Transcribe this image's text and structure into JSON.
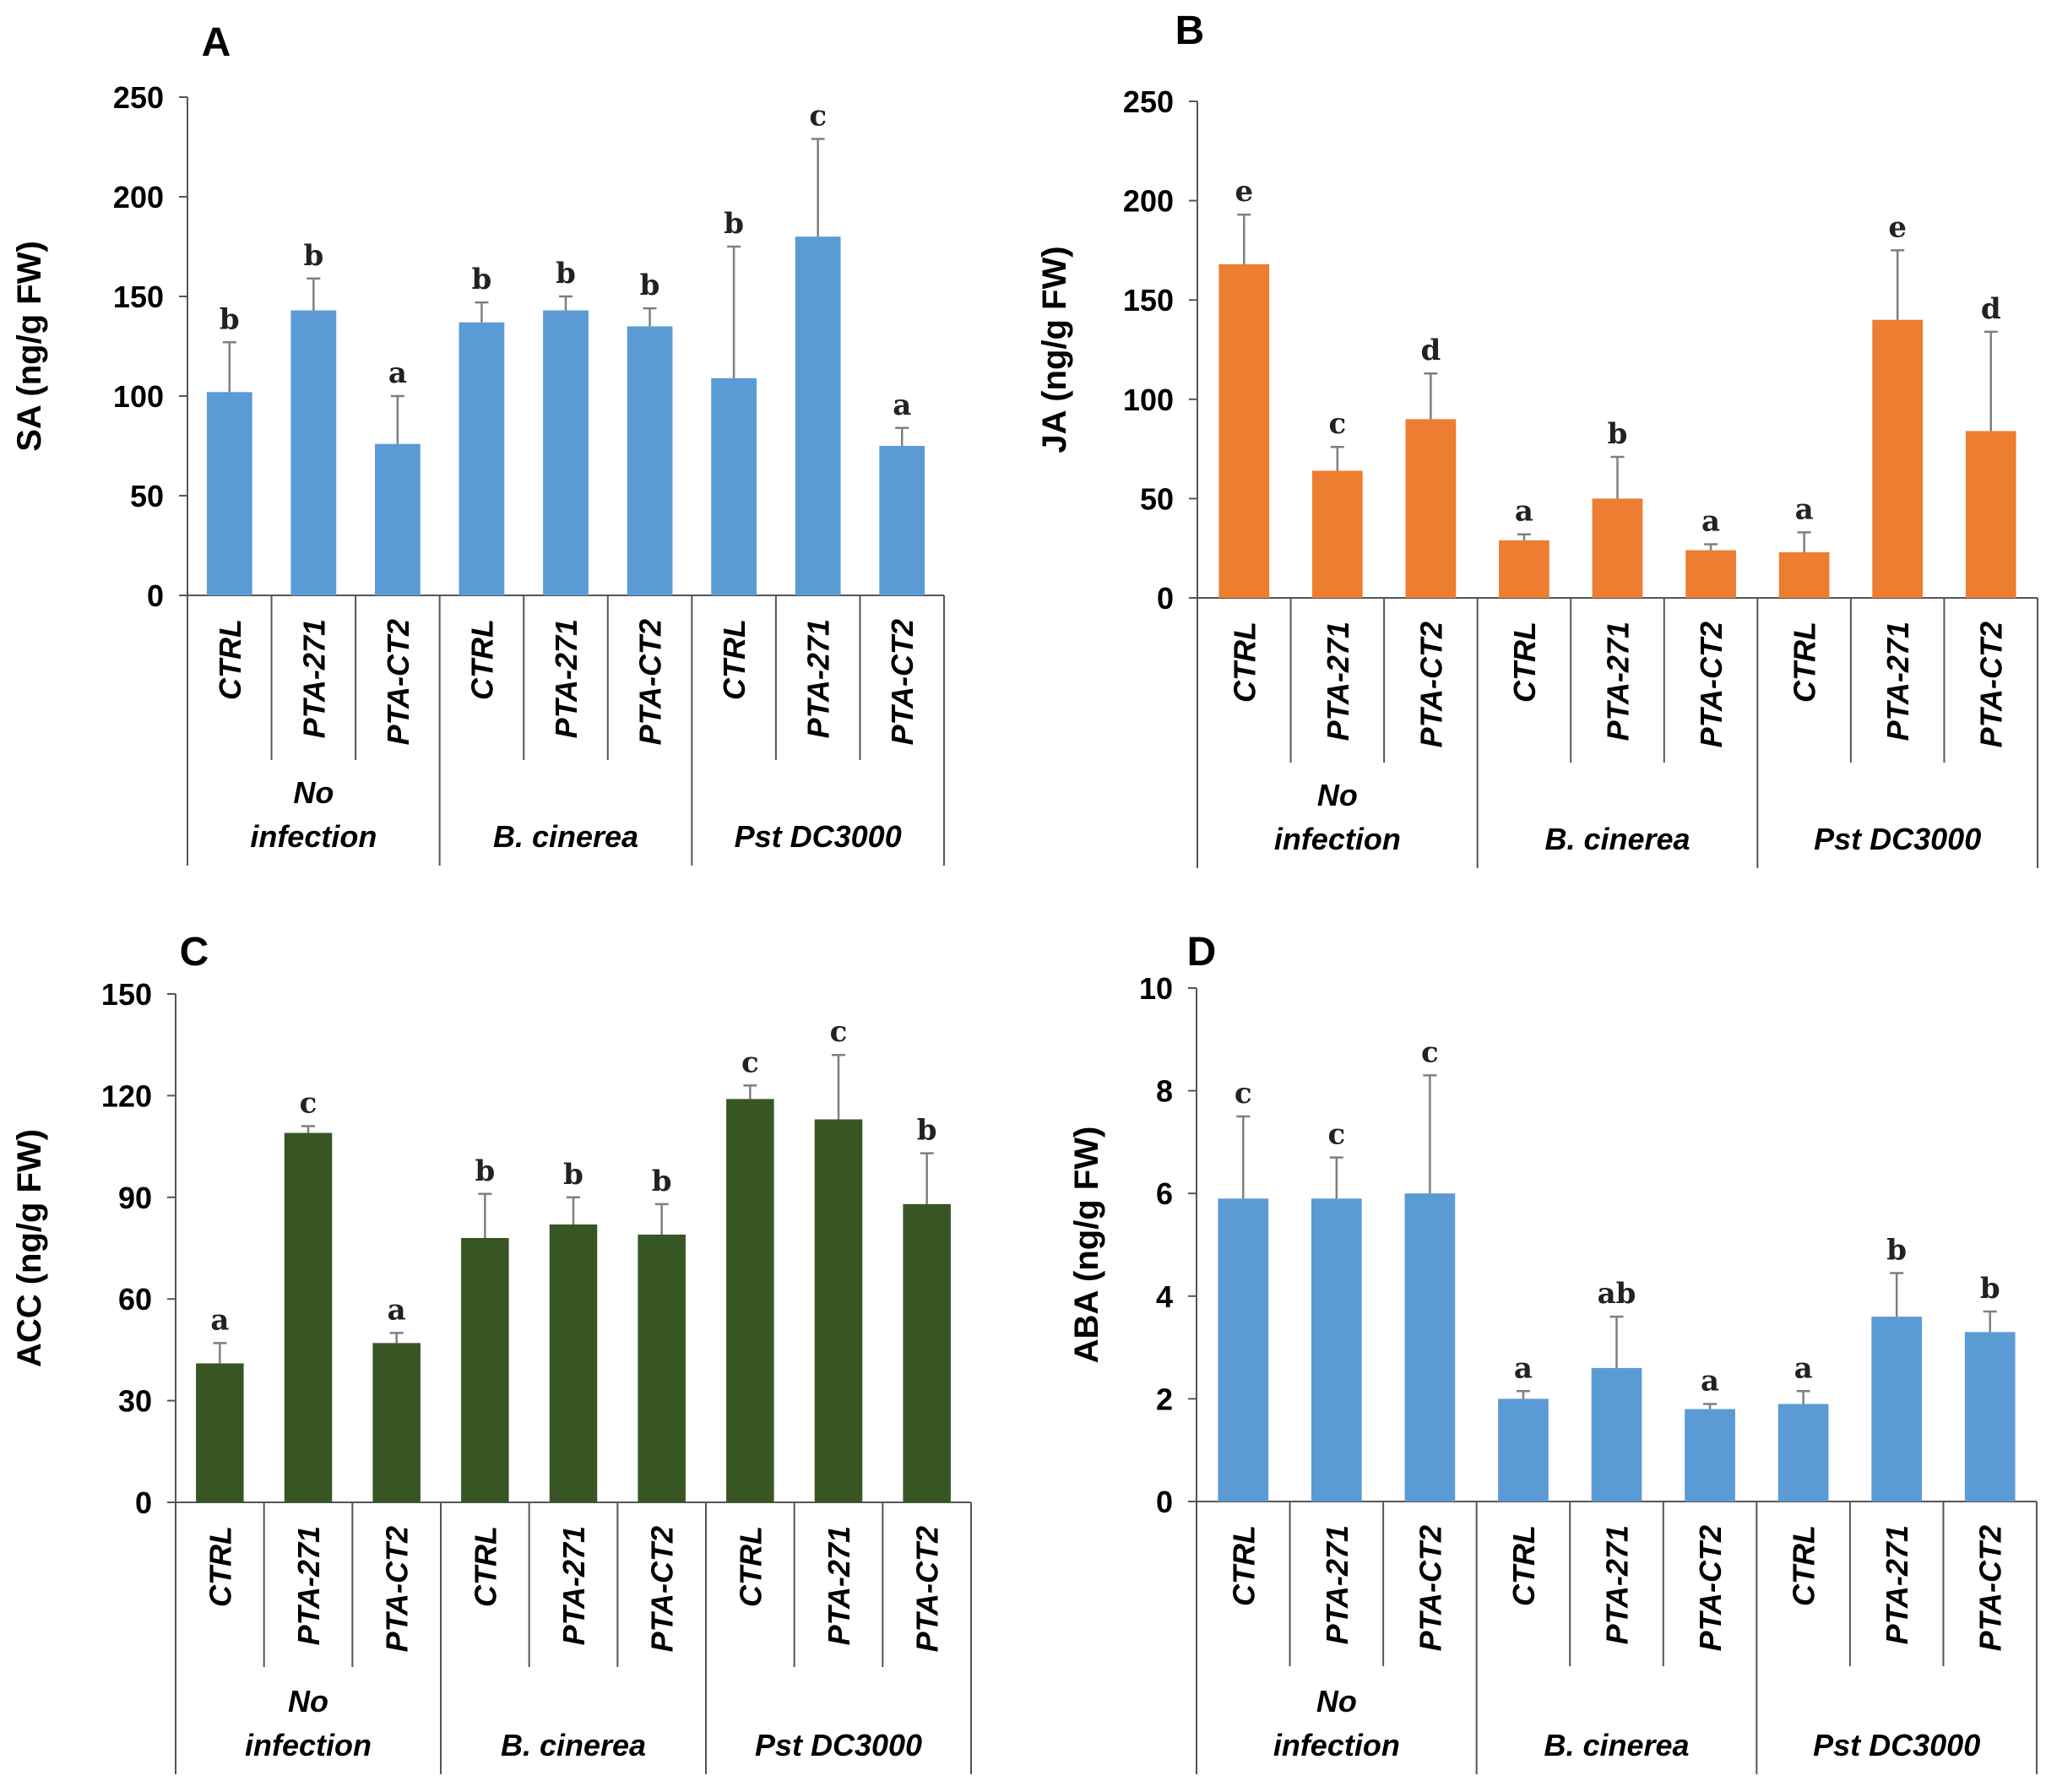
{
  "chart_data": [
    {
      "panel": "A",
      "type": "bar",
      "ylabel": "SA (ng/g FW)",
      "ylim": [
        0,
        250
      ],
      "yticks": [
        0,
        50,
        100,
        150,
        200,
        250
      ],
      "color": "#5b9bd5",
      "groups": [
        "No infection",
        "B. cinerea",
        "Pst DC3000"
      ],
      "group_lines": [
        [
          "No",
          "infection"
        ],
        [
          "B. cinerea"
        ],
        [
          "Pst DC3000"
        ]
      ],
      "categories": [
        "CTRL",
        "PTA-271",
        "PTA-CT2",
        "CTRL",
        "PTA-271",
        "PTA-CT2",
        "CTRL",
        "PTA-271",
        "PTA-CT2"
      ],
      "values": [
        102,
        143,
        76,
        137,
        143,
        135,
        109,
        180,
        75
      ],
      "errors": [
        25,
        16,
        24,
        10,
        7,
        9,
        66,
        49,
        9
      ],
      "letters": [
        "b",
        "b",
        "a",
        "b",
        "b",
        "b",
        "b",
        "c",
        "a"
      ]
    },
    {
      "panel": "B",
      "type": "bar",
      "ylabel": "JA (ng/g FW)",
      "ylim": [
        0,
        250
      ],
      "yticks": [
        0,
        50,
        100,
        150,
        200,
        250
      ],
      "color": "#ed7d31",
      "groups": [
        "No infection",
        "B. cinerea",
        "Pst DC3000"
      ],
      "group_lines": [
        [
          "No",
          "infection"
        ],
        [
          "B. cinerea"
        ],
        [
          "Pst DC3000"
        ]
      ],
      "categories": [
        "CTRL",
        "PTA-271",
        "PTA-CT2",
        "CTRL",
        "PTA-271",
        "PTA-CT2",
        "CTRL",
        "PTA-271",
        "PTA-CT2"
      ],
      "values": [
        168,
        64,
        90,
        29,
        50,
        24,
        23,
        140,
        84
      ],
      "errors": [
        25,
        12,
        23,
        3,
        21,
        3,
        10,
        35,
        50
      ],
      "letters": [
        "e",
        "c",
        "d",
        "a",
        "b",
        "a",
        "a",
        "e",
        "d"
      ]
    },
    {
      "panel": "C",
      "type": "bar",
      "ylabel": "ACC (ng/g FW)",
      "ylim": [
        0,
        150
      ],
      "yticks": [
        0,
        30,
        60,
        90,
        120,
        150
      ],
      "color": "#375623",
      "groups": [
        "No infection",
        "B. cinerea",
        "Pst DC3000"
      ],
      "group_lines": [
        [
          "No",
          "infection"
        ],
        [
          "B. cinerea"
        ],
        [
          "Pst DC3000"
        ]
      ],
      "categories": [
        "CTRL",
        "PTA-271",
        "PTA-CT2",
        "CTRL",
        "PTA-271",
        "PTA-CT2",
        "CTRL",
        "PTA-271",
        "PTA-CT2"
      ],
      "values": [
        41,
        109,
        47,
        78,
        82,
        79,
        119,
        113,
        88
      ],
      "errors": [
        6,
        2,
        3,
        13,
        8,
        9,
        4,
        19,
        15
      ],
      "letters": [
        "a",
        "c",
        "a",
        "b",
        "b",
        "b",
        "c",
        "c",
        "b"
      ]
    },
    {
      "panel": "D",
      "type": "bar",
      "ylabel": "ABA (ng/g FW)",
      "ylim": [
        0,
        10
      ],
      "yticks": [
        0,
        2,
        4,
        6,
        8,
        10
      ],
      "color": "#5b9bd5",
      "groups": [
        "No infection",
        "B. cinerea",
        "Pst DC3000"
      ],
      "group_lines": [
        [
          "No",
          "infection"
        ],
        [
          "B. cinerea"
        ],
        [
          "Pst DC3000"
        ]
      ],
      "categories": [
        "CTRL",
        "PTA-271",
        "PTA-CT2",
        "CTRL",
        "PTA-271",
        "PTA-CT2",
        "CTRL",
        "PTA-271",
        "PTA-CT2"
      ],
      "values": [
        5.9,
        5.9,
        6.0,
        2.0,
        2.6,
        1.8,
        1.9,
        3.6,
        3.3
      ],
      "errors": [
        1.6,
        0.8,
        2.3,
        0.15,
        1.0,
        0.1,
        0.25,
        0.85,
        0.4
      ],
      "letters": [
        "c",
        "c",
        "c",
        "a",
        "ab",
        "a",
        "a",
        "b",
        "b"
      ]
    }
  ]
}
